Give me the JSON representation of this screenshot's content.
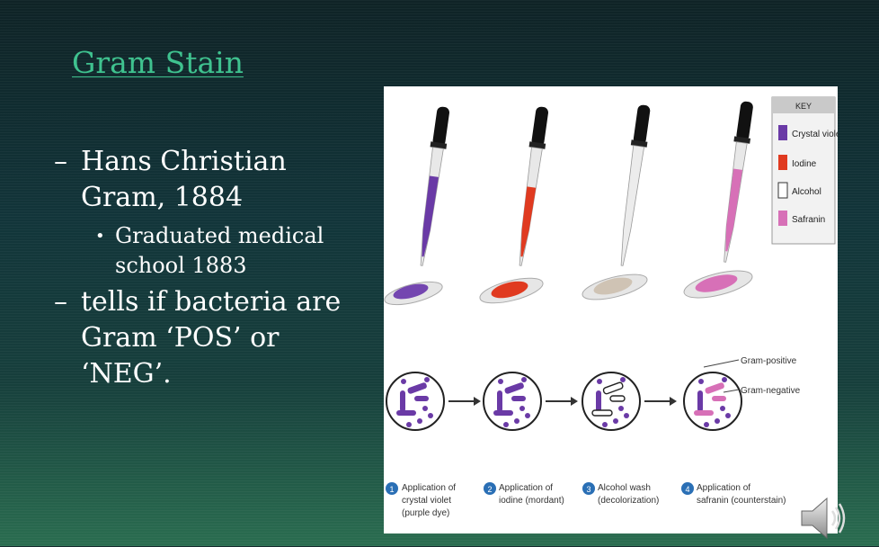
{
  "slide": {
    "title": "Gram Stain",
    "bullets": [
      {
        "text": "Hans Christian Gram, 1884",
        "sub": [
          "Graduated medical school 1883"
        ]
      },
      {
        "text": "tells if bacteria are Gram ‘POS’ or ‘NEG’."
      }
    ],
    "dash": "–",
    "dot": "•"
  },
  "figure": {
    "key": {
      "title": "KEY",
      "items": [
        {
          "label": "Crystal violet",
          "color": "#6a3aa6"
        },
        {
          "label": "Iodine",
          "color": "#e03a20"
        },
        {
          "label": "Alcohol",
          "color": "#ffffff"
        },
        {
          "label": "Safranin",
          "color": "#d770b7"
        }
      ]
    },
    "labels": {
      "gram_positive": "Gram-positive",
      "gram_negative": "Gram-negative"
    },
    "steps": [
      {
        "num": "1",
        "line1": "Application of",
        "line2": "crystal violet",
        "line3": "(purple dye)"
      },
      {
        "num": "2",
        "line1": "Application of",
        "line2": "iodine (mordant)",
        "line3": ""
      },
      {
        "num": "3",
        "line1": "Alcohol wash",
        "line2": "(decolorization)",
        "line3": ""
      },
      {
        "num": "4",
        "line1": "Application of",
        "line2": "safranin (counterstain)",
        "line3": ""
      }
    ]
  },
  "icons": {
    "speaker": "speaker-icon"
  }
}
